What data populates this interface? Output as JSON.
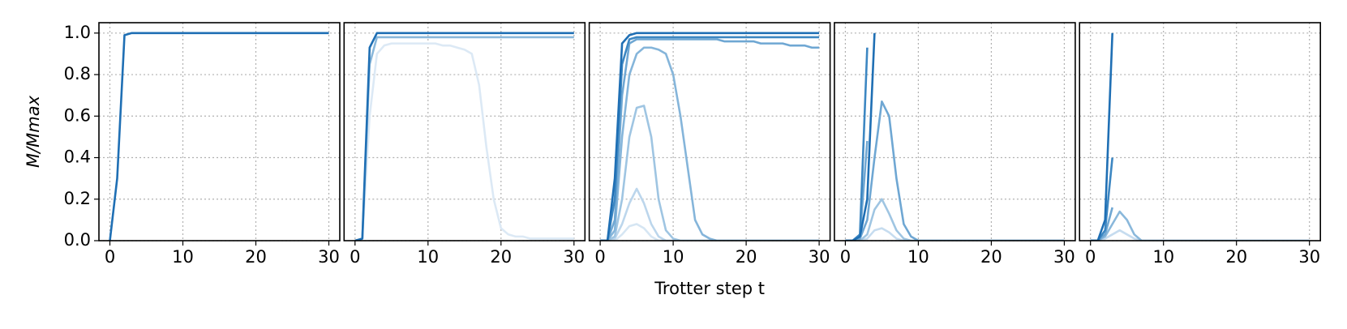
{
  "chart_data": [
    {
      "type": "line",
      "ylabel": "M/Mmax",
      "x": [
        0,
        1,
        2,
        3,
        4,
        5,
        6,
        7,
        8,
        9,
        10,
        11,
        12,
        13,
        14,
        15,
        16,
        17,
        18,
        19,
        20,
        21,
        22,
        23,
        24,
        25,
        26,
        27,
        28,
        29,
        30
      ],
      "xlim": [
        -1.5,
        31.5
      ],
      "xticks": [
        0,
        10,
        20,
        30
      ],
      "ylim": [
        0,
        1.05
      ],
      "yticks": [
        {
          "value": 0,
          "label": "0.0"
        },
        {
          "value": 0.2,
          "label": "0.2"
        },
        {
          "value": 0.4,
          "label": "0.4"
        },
        {
          "value": 0.6,
          "label": "0.6"
        },
        {
          "value": 0.8,
          "label": "0.8"
        },
        {
          "value": 1,
          "label": "1.0"
        }
      ],
      "grid": true,
      "series": [
        {
          "color": "#1f6fb4",
          "values": [
            0,
            0.3,
            0.99,
            1,
            1,
            1,
            1,
            1,
            1,
            1,
            1,
            1,
            1,
            1,
            1,
            1,
            1,
            1,
            1,
            1,
            1,
            1,
            1,
            1,
            1,
            1,
            1,
            1,
            1,
            1,
            1
          ]
        }
      ]
    },
    {
      "type": "line",
      "x": [
        0,
        1,
        2,
        3,
        4,
        5,
        6,
        7,
        8,
        9,
        10,
        11,
        12,
        13,
        14,
        15,
        16,
        17,
        18,
        19,
        20,
        21,
        22,
        23,
        24,
        25,
        26,
        27,
        28,
        29,
        30
      ],
      "xlim": [
        -1.5,
        31.5
      ],
      "xticks": [
        0,
        10,
        20,
        30
      ],
      "ylim": [
        0,
        1.05
      ],
      "yticks": [
        0,
        0.2,
        0.4,
        0.6,
        0.8,
        1
      ],
      "grid": true,
      "series": [
        {
          "color": "#dce9f5",
          "values": [
            0,
            0.01,
            0.6,
            0.9,
            0.94,
            0.95,
            0.95,
            0.95,
            0.95,
            0.95,
            0.95,
            0.95,
            0.94,
            0.94,
            0.93,
            0.92,
            0.9,
            0.75,
            0.45,
            0.2,
            0.06,
            0.03,
            0.02,
            0.02,
            0.01,
            0.01,
            0.01,
            0.01,
            0.01,
            0.01,
            0.01
          ]
        },
        {
          "color": "#8ab8db",
          "values": [
            0,
            0.01,
            0.85,
            0.98,
            0.98,
            0.98,
            0.98,
            0.98,
            0.98,
            0.98,
            0.98,
            0.98,
            0.98,
            0.98,
            0.98,
            0.98,
            0.98,
            0.98,
            0.98,
            0.98,
            0.98,
            0.98,
            0.98,
            0.98,
            0.98,
            0.98,
            0.98,
            0.98,
            0.98,
            0.98,
            0.98
          ]
        },
        {
          "color": "#1f6fb4",
          "values": [
            0,
            0.01,
            0.93,
            1,
            1,
            1,
            1,
            1,
            1,
            1,
            1,
            1,
            1,
            1,
            1,
            1,
            1,
            1,
            1,
            1,
            1,
            1,
            1,
            1,
            1,
            1,
            1,
            1,
            1,
            1,
            1
          ]
        }
      ]
    },
    {
      "type": "line",
      "xlabel": "Trotter step t",
      "x": [
        0,
        1,
        2,
        3,
        4,
        5,
        6,
        7,
        8,
        9,
        10,
        11,
        12,
        13,
        14,
        15,
        16,
        17,
        18,
        19,
        20,
        21,
        22,
        23,
        24,
        25,
        26,
        27,
        28,
        29,
        30
      ],
      "xlim": [
        -1.5,
        31.5
      ],
      "xticks": [
        0,
        10,
        20,
        30
      ],
      "ylim": [
        0,
        1.05
      ],
      "yticks": [
        0,
        0.2,
        0.4,
        0.6,
        0.8,
        1
      ],
      "grid": true,
      "series": [
        {
          "color": "#d6e6f3",
          "values": [
            0,
            0,
            0,
            0.03,
            0.07,
            0.08,
            0.06,
            0.02,
            0,
            0,
            0,
            0,
            0,
            0,
            0,
            0,
            0,
            0,
            0,
            0,
            0,
            0,
            0,
            0,
            0,
            0,
            0,
            0,
            0,
            0,
            0
          ]
        },
        {
          "color": "#bcd6ec",
          "values": [
            0,
            0,
            0.01,
            0.08,
            0.18,
            0.25,
            0.18,
            0.08,
            0.02,
            0,
            0,
            0,
            0,
            0,
            0,
            0,
            0,
            0,
            0,
            0,
            0,
            0,
            0,
            0,
            0,
            0,
            0,
            0,
            0,
            0,
            0
          ]
        },
        {
          "color": "#9fc5e2",
          "values": [
            0,
            0,
            0.02,
            0.2,
            0.5,
            0.64,
            0.65,
            0.5,
            0.2,
            0.05,
            0.01,
            0,
            0,
            0,
            0,
            0,
            0,
            0,
            0,
            0,
            0,
            0,
            0,
            0,
            0,
            0,
            0,
            0,
            0,
            0,
            0
          ]
        },
        {
          "color": "#85b5da",
          "values": [
            0,
            0,
            0.05,
            0.5,
            0.8,
            0.9,
            0.93,
            0.93,
            0.92,
            0.9,
            0.8,
            0.6,
            0.35,
            0.1,
            0.03,
            0.01,
            0,
            0,
            0,
            0,
            0,
            0,
            0,
            0,
            0,
            0,
            0,
            0,
            0,
            0,
            0
          ]
        },
        {
          "color": "#6fa7d3",
          "values": [
            0,
            0,
            0.1,
            0.7,
            0.95,
            0.97,
            0.97,
            0.97,
            0.97,
            0.97,
            0.97,
            0.97,
            0.97,
            0.97,
            0.97,
            0.97,
            0.97,
            0.96,
            0.96,
            0.96,
            0.96,
            0.96,
            0.95,
            0.95,
            0.95,
            0.95,
            0.94,
            0.94,
            0.94,
            0.93,
            0.93
          ]
        },
        {
          "color": "#3d87c2",
          "values": [
            0,
            0,
            0.2,
            0.85,
            0.97,
            0.98,
            0.98,
            0.98,
            0.98,
            0.98,
            0.98,
            0.98,
            0.98,
            0.98,
            0.98,
            0.98,
            0.98,
            0.98,
            0.98,
            0.98,
            0.98,
            0.98,
            0.98,
            0.98,
            0.98,
            0.98,
            0.98,
            0.98,
            0.98,
            0.98,
            0.98
          ]
        },
        {
          "color": "#1f6fb4",
          "values": [
            0,
            0,
            0.3,
            0.95,
            0.99,
            1,
            1,
            1,
            1,
            1,
            1,
            1,
            1,
            1,
            1,
            1,
            1,
            1,
            1,
            1,
            1,
            1,
            1,
            1,
            1,
            1,
            1,
            1,
            1,
            1,
            1
          ]
        }
      ]
    },
    {
      "type": "line",
      "x": [
        0,
        1,
        2,
        3,
        4,
        5,
        6,
        7,
        8,
        9,
        10,
        11,
        12,
        13,
        14,
        15,
        16,
        17,
        18,
        19,
        20,
        21,
        22,
        23,
        24,
        25,
        26,
        27,
        28,
        29,
        30
      ],
      "xlim": [
        -1.5,
        31.5
      ],
      "xticks": [
        0,
        10,
        20,
        30
      ],
      "ylim": [
        0,
        1.05
      ],
      "yticks": [
        0,
        0.2,
        0.4,
        0.6,
        0.8,
        1
      ],
      "grid": true,
      "series": [
        {
          "color": "#c6dcef",
          "values": [
            0,
            0,
            0,
            0.01,
            0.05,
            0.06,
            0.04,
            0.01,
            0,
            0,
            0,
            0,
            0,
            0,
            0,
            0,
            0,
            0,
            0,
            0,
            0,
            0,
            0,
            0,
            0,
            0,
            0,
            0,
            0,
            0,
            0
          ]
        },
        {
          "color": "#9fc5e2",
          "values": [
            0,
            0,
            0,
            0.03,
            0.15,
            0.2,
            0.13,
            0.05,
            0.01,
            0,
            0,
            0,
            0,
            0,
            0,
            0,
            0,
            0,
            0,
            0,
            0,
            0,
            0,
            0,
            0,
            0,
            0,
            0,
            0,
            0,
            0
          ]
        },
        {
          "color": "#6fa7d3",
          "values": [
            0,
            0,
            0.01,
            0.1,
            0.4,
            0.67,
            0.6,
            0.3,
            0.08,
            0.02,
            0,
            0,
            0,
            0,
            0,
            0,
            0,
            0,
            0,
            0,
            0,
            0,
            0,
            0,
            0,
            0,
            0,
            0,
            0,
            0,
            0
          ]
        },
        {
          "color": "#6fa7d3",
          "values": [
            0,
            0,
            0.02,
            0.48,
            null,
            null,
            null,
            null,
            null,
            null,
            null,
            null,
            null,
            null,
            null,
            null,
            null,
            null,
            null,
            null,
            null,
            null,
            null,
            null,
            null,
            null,
            null,
            null,
            null,
            null,
            null
          ]
        },
        {
          "color": "#3d87c2",
          "values": [
            0,
            0,
            0.03,
            0.93,
            null,
            null,
            null,
            null,
            null,
            null,
            null,
            null,
            null,
            null,
            null,
            null,
            null,
            null,
            null,
            null,
            null,
            null,
            null,
            null,
            null,
            null,
            null,
            null,
            null,
            null,
            null
          ]
        },
        {
          "color": "#1f6fb4",
          "values": [
            0,
            0,
            0.02,
            0.2,
            1.0,
            null,
            null,
            null,
            null,
            null,
            null,
            null,
            null,
            null,
            null,
            null,
            null,
            null,
            null,
            null,
            null,
            null,
            null,
            null,
            null,
            null,
            null,
            null,
            null,
            null,
            null
          ]
        }
      ]
    },
    {
      "type": "line",
      "x": [
        0,
        1,
        2,
        3,
        4,
        5,
        6,
        7,
        8,
        9,
        10,
        11,
        12,
        13,
        14,
        15,
        16,
        17,
        18,
        19,
        20,
        21,
        22,
        23,
        24,
        25,
        26,
        27,
        28,
        29,
        30
      ],
      "xlim": [
        -1.5,
        31.5
      ],
      "xticks": [
        0,
        10,
        20,
        30
      ],
      "ylim": [
        0,
        1.05
      ],
      "yticks": [
        0,
        0.2,
        0.4,
        0.6,
        0.8,
        1
      ],
      "grid": true,
      "series": [
        {
          "color": "#c6dcef",
          "values": [
            0,
            0,
            0.01,
            0.03,
            0.05,
            0.03,
            0.01,
            0,
            0,
            0,
            0,
            0,
            0,
            0,
            0,
            0,
            0,
            0,
            0,
            0,
            0,
            0,
            0,
            0,
            0,
            0,
            0,
            0,
            0,
            0,
            0
          ]
        },
        {
          "color": "#8ab8db",
          "values": [
            0,
            0,
            0.02,
            0.08,
            0.14,
            0.1,
            0.03,
            0,
            0,
            0,
            0,
            0,
            0,
            0,
            0,
            0,
            0,
            0,
            0,
            0,
            0,
            0,
            0,
            0,
            0,
            0,
            0,
            0,
            0,
            0,
            0
          ]
        },
        {
          "color": "#6fa7d3",
          "values": [
            0,
            0,
            0.03,
            0.16,
            null,
            null,
            null,
            null,
            null,
            null,
            null,
            null,
            null,
            null,
            null,
            null,
            null,
            null,
            null,
            null,
            null,
            null,
            null,
            null,
            null,
            null,
            null,
            null,
            null,
            null,
            null
          ]
        },
        {
          "color": "#3d87c2",
          "values": [
            0,
            0,
            0.05,
            0.4,
            null,
            null,
            null,
            null,
            null,
            null,
            null,
            null,
            null,
            null,
            null,
            null,
            null,
            null,
            null,
            null,
            null,
            null,
            null,
            null,
            null,
            null,
            null,
            null,
            null,
            null,
            null
          ]
        },
        {
          "color": "#1f6fb4",
          "values": [
            0,
            0,
            0.1,
            1.0,
            null,
            null,
            null,
            null,
            null,
            null,
            null,
            null,
            null,
            null,
            null,
            null,
            null,
            null,
            null,
            null,
            null,
            null,
            null,
            null,
            null,
            null,
            null,
            null,
            null,
            null,
            null
          ]
        }
      ]
    }
  ]
}
